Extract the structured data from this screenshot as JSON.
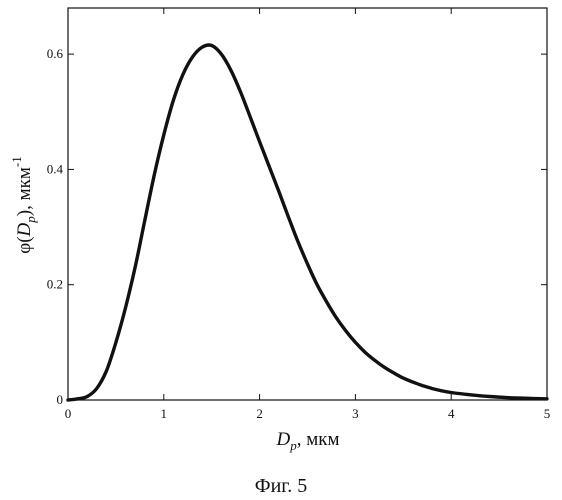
{
  "chart_data": {
    "type": "line",
    "title": "",
    "x_ticks": [
      0,
      1,
      2,
      3,
      4,
      5
    ],
    "y_ticks": [
      0,
      0.2,
      0.4,
      0.6
    ],
    "xlim": [
      0,
      5
    ],
    "ylim": [
      0,
      0.68
    ],
    "grid": false,
    "xlabel": {
      "symbol": "D",
      "subscript": "p",
      "unit": ", мкм"
    },
    "ylabel": {
      "prefix": "φ(",
      "symbol": "D",
      "subscript": "p",
      "suffix": "), мкм",
      "superscript": "-1"
    },
    "series": [
      {
        "color": "#111111",
        "x": [
          0,
          0.1,
          0.2,
          0.3,
          0.4,
          0.5,
          0.6,
          0.7,
          0.8,
          0.9,
          1.0,
          1.1,
          1.2,
          1.3,
          1.4,
          1.5,
          1.6,
          1.7,
          1.8,
          1.9,
          2.0,
          2.1,
          2.2,
          2.3,
          2.4,
          2.5,
          2.6,
          2.7,
          2.8,
          2.9,
          3.0,
          3.1,
          3.2,
          3.3,
          3.4,
          3.5,
          3.6,
          3.7,
          3.8,
          3.9,
          4.0,
          4.2,
          4.4,
          4.6,
          4.8,
          5.0
        ],
        "y": [
          0.0,
          0.002,
          0.006,
          0.02,
          0.05,
          0.1,
          0.16,
          0.23,
          0.31,
          0.39,
          0.46,
          0.52,
          0.565,
          0.595,
          0.612,
          0.615,
          0.6,
          0.572,
          0.535,
          0.492,
          0.448,
          0.405,
          0.362,
          0.318,
          0.275,
          0.236,
          0.2,
          0.17,
          0.143,
          0.12,
          0.1,
          0.083,
          0.069,
          0.057,
          0.047,
          0.038,
          0.031,
          0.025,
          0.02,
          0.016,
          0.013,
          0.009,
          0.006,
          0.004,
          0.003,
          0.002
        ]
      }
    ]
  },
  "caption": "Фиг. 5"
}
